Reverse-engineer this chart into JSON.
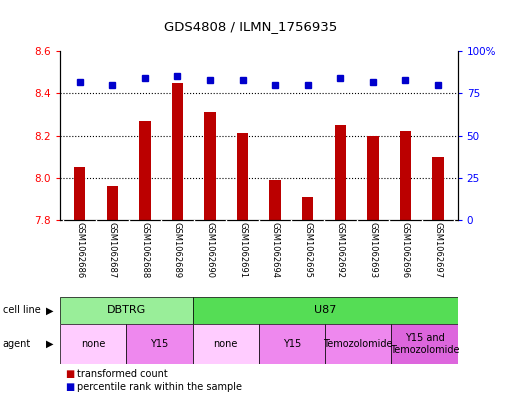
{
  "title": "GDS4808 / ILMN_1756935",
  "samples": [
    "GSM1062686",
    "GSM1062687",
    "GSM1062688",
    "GSM1062689",
    "GSM1062690",
    "GSM1062691",
    "GSM1062694",
    "GSM1062695",
    "GSM1062692",
    "GSM1062693",
    "GSM1062696",
    "GSM1062697"
  ],
  "transformed_count": [
    8.05,
    7.96,
    8.27,
    8.45,
    8.31,
    8.21,
    7.99,
    7.91,
    8.25,
    8.2,
    8.22,
    8.1
  ],
  "percentile_rank": [
    82,
    80,
    84,
    85,
    83,
    83,
    80,
    80,
    84,
    82,
    83,
    80
  ],
  "ylim_left": [
    7.8,
    8.6
  ],
  "ylim_right": [
    0,
    100
  ],
  "yticks_left": [
    7.8,
    8.0,
    8.2,
    8.4,
    8.6
  ],
  "yticks_right": [
    0,
    25,
    50,
    75,
    100
  ],
  "bar_color": "#bb0000",
  "dot_color": "#0000cc",
  "bg_color": "#ffffff",
  "sample_label_bg": "#d3d3d3",
  "cell_line_groups": [
    {
      "label": "DBTRG",
      "start": 0,
      "end": 4,
      "color": "#99ee99"
    },
    {
      "label": "U87",
      "start": 4,
      "end": 12,
      "color": "#55dd55"
    }
  ],
  "agent_groups": [
    {
      "label": "none",
      "start": 0,
      "end": 2,
      "color": "#ffccff"
    },
    {
      "label": "Y15",
      "start": 2,
      "end": 4,
      "color": "#ee88ee"
    },
    {
      "label": "none",
      "start": 4,
      "end": 6,
      "color": "#ffccff"
    },
    {
      "label": "Y15",
      "start": 6,
      "end": 8,
      "color": "#ee88ee"
    },
    {
      "label": "Temozolomide",
      "start": 8,
      "end": 10,
      "color": "#ee88ee"
    },
    {
      "label": "Y15 and\nTemozolomide",
      "start": 10,
      "end": 12,
      "color": "#dd66dd"
    }
  ]
}
